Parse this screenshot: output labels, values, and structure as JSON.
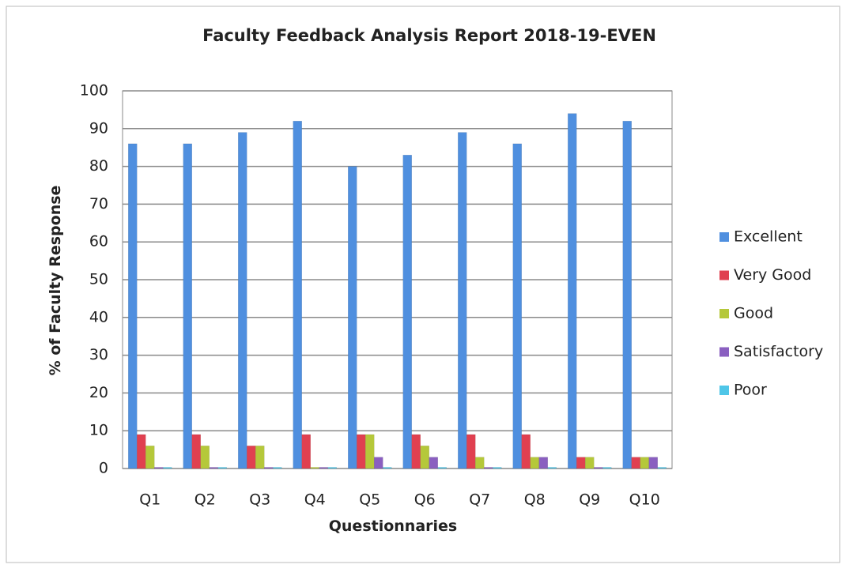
{
  "chart_data": {
    "type": "bar",
    "title": "Faculty Feedback Analysis Report 2018-19-EVEN",
    "x_label": "Questionnaries",
    "y_label": "% of Faculty Response",
    "categories": [
      "Q1",
      "Q2",
      "Q3",
      "Q4",
      "Q5",
      "Q6",
      "Q7",
      "Q8",
      "Q9",
      "Q10"
    ],
    "series": [
      {
        "name": "Excellent",
        "color": "#4f8fdf",
        "values": [
          86,
          86,
          89,
          92,
          80,
          83,
          89,
          86,
          94,
          92
        ]
      },
      {
        "name": "Very Good",
        "color": "#e04050",
        "values": [
          9,
          9,
          6,
          9,
          9,
          9,
          9,
          9,
          3,
          3
        ]
      },
      {
        "name": "Good",
        "color": "#b5c83a",
        "values": [
          6,
          6,
          6,
          0,
          9,
          6,
          3,
          3,
          3,
          3
        ]
      },
      {
        "name": "Satisfactory",
        "color": "#8a5fc0",
        "values": [
          0,
          0,
          0,
          0,
          3,
          3,
          0,
          3,
          0,
          3
        ]
      },
      {
        "name": "Poor",
        "color": "#4fc6e8",
        "values": [
          0,
          0,
          0,
          0,
          0,
          0,
          0,
          0,
          0,
          0
        ]
      }
    ],
    "ylim": [
      0,
      100
    ],
    "yticks": [
      0,
      10,
      20,
      30,
      40,
      50,
      60,
      70,
      80,
      90,
      100
    ],
    "grid": true,
    "legend": "right"
  }
}
